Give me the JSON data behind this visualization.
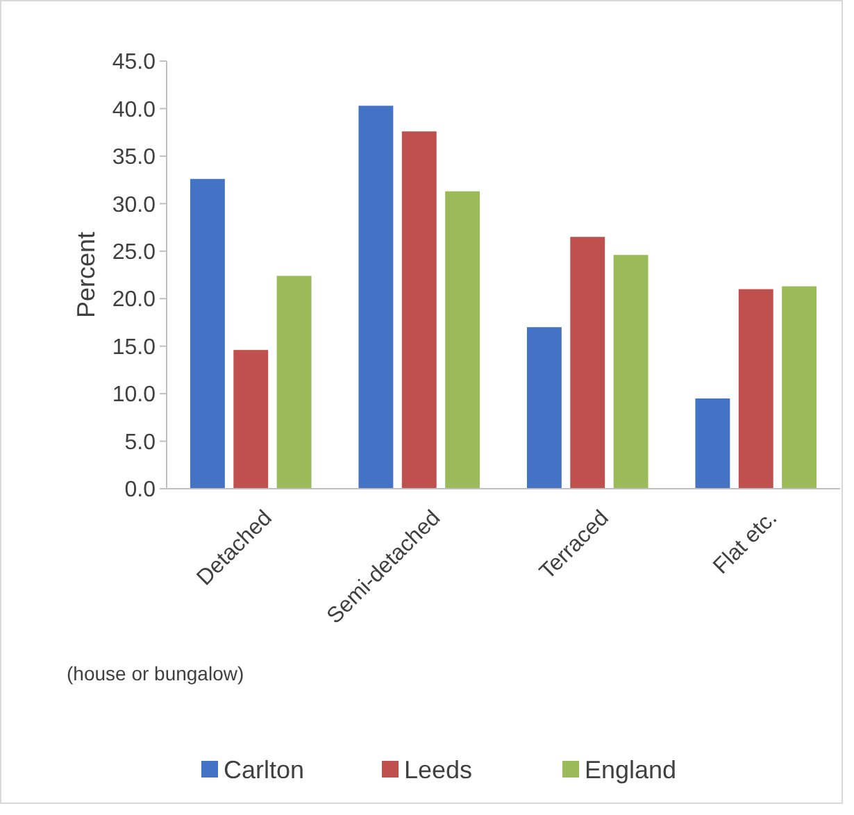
{
  "chart_data": {
    "type": "bar",
    "ylabel": "Percent",
    "categories": [
      "Detached",
      "Semi-detached",
      "Terraced",
      "Flat etc."
    ],
    "series": [
      {
        "name": "Carlton",
        "color": "#4472c4",
        "values": [
          32.6,
          40.3,
          17.0,
          9.5
        ]
      },
      {
        "name": "Leeds",
        "color": "#c0504d",
        "values": [
          14.6,
          37.6,
          26.5,
          21.0
        ]
      },
      {
        "name": "England",
        "color": "#9bbb59",
        "values": [
          22.4,
          31.3,
          24.6,
          21.3
        ]
      }
    ],
    "ylim": [
      0,
      45
    ],
    "yticks": [
      {
        "value": 0,
        "label": "0.0"
      },
      {
        "value": 5,
        "label": "5.0"
      },
      {
        "value": 10,
        "label": "10.0"
      },
      {
        "value": 15,
        "label": "15.0"
      },
      {
        "value": 20,
        "label": "20.0"
      },
      {
        "value": 25,
        "label": "25.0"
      },
      {
        "value": 30,
        "label": "30.0"
      },
      {
        "value": 35,
        "label": "35.0"
      },
      {
        "value": 40,
        "label": "40.0"
      },
      {
        "value": 45,
        "label": "45.0"
      }
    ],
    "annotations": [
      "(house or bungalow)"
    ],
    "legend": "bottom",
    "grid": false
  }
}
